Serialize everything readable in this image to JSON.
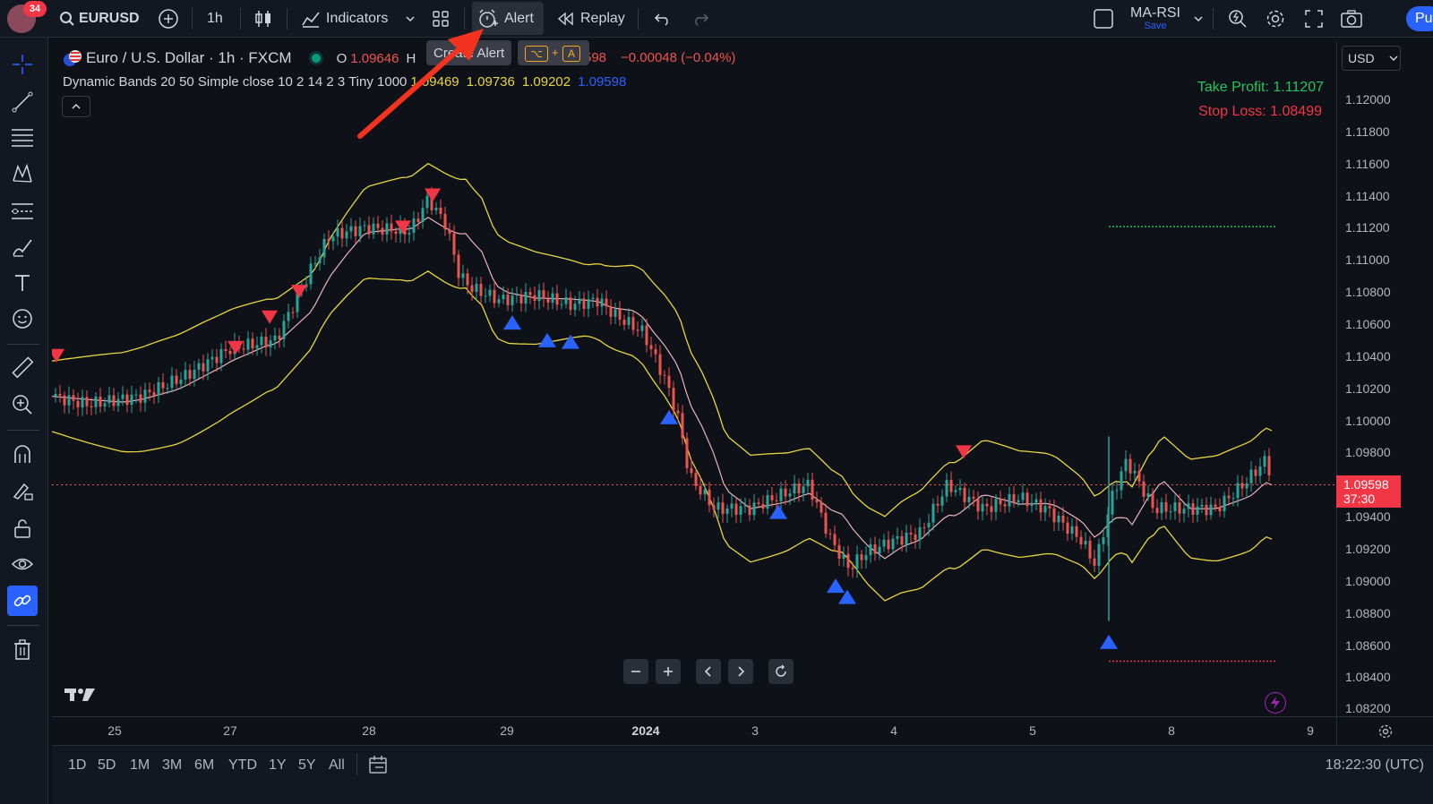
{
  "topbar": {
    "notifications": "34",
    "symbol": "EURUSD",
    "interval": "1h",
    "indicators_label": "Indicators",
    "alert_label": "Alert",
    "replay_label": "Replay",
    "layout_name": "MA-RSI",
    "layout_save": "Save",
    "publish_label": "Pu"
  },
  "legend": {
    "title": "Euro / U.S. Dollar · 1h · FXCM",
    "open_label": "O",
    "open_value": "1.09646",
    "high_label": "H",
    "close_partial": "598",
    "change": "−0.00048 (−0.04%)",
    "indicator_name": "Dynamic Bands 20 50 Simple close 10 2 14 2 3 Tiny 1000",
    "ind_v1": "1.09469",
    "ind_v2": "1.09736",
    "ind_v3": "1.09202",
    "ind_v4": "1.09598"
  },
  "tooltip": {
    "text": "Create Alert",
    "key1": "⌥",
    "plus": "+",
    "key2": "A"
  },
  "annotations": {
    "take_profit": "Take Profit: 1.11207",
    "stop_loss": "Stop Loss: 1.08499"
  },
  "price_axis": {
    "currency": "USD",
    "labels": [
      "1.12000",
      "1.11800",
      "1.11600",
      "1.11400",
      "1.11200",
      "1.11000",
      "1.10800",
      "1.10600",
      "1.10400",
      "1.10200",
      "1.10000",
      "1.09800",
      "1.09400",
      "1.09200",
      "1.09000",
      "1.08800",
      "1.08600",
      "1.08400",
      "1.08200"
    ],
    "current_price": "1.09598",
    "countdown": "37:30"
  },
  "time_axis": {
    "labels": [
      "25",
      "27",
      "28",
      "29",
      "2024",
      "3",
      "4",
      "5",
      "8",
      "9"
    ]
  },
  "bottombar": {
    "ranges": [
      "1D",
      "5D",
      "1M",
      "3M",
      "6M",
      "YTD",
      "1Y",
      "5Y",
      "All"
    ],
    "clock": "18:22:30 (UTC)"
  },
  "colors": {
    "up": "#26a69a",
    "down": "#ef5350",
    "band": "#e6d642",
    "mid": "#e8b4bc",
    "signal_up": "#2962ff",
    "signal_down": "#f23645",
    "take_profit": "#22c55e",
    "stop_loss": "#f23645"
  }
}
